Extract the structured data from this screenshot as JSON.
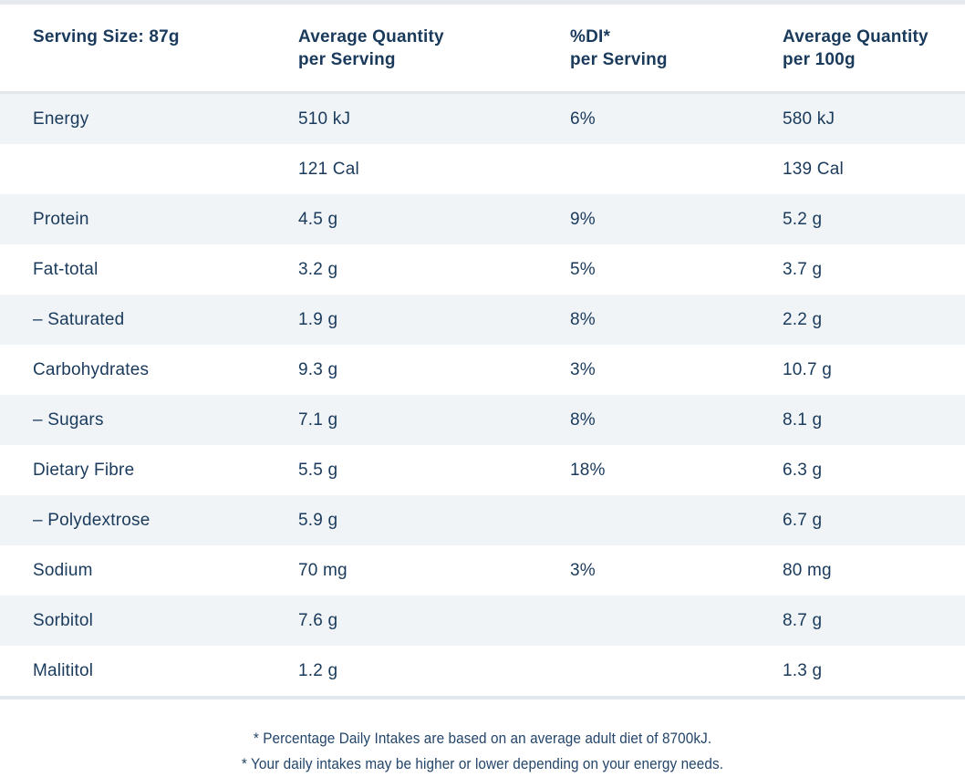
{
  "colors": {
    "text_navy": "#1a3a5c",
    "shaded_row": "#f0f4f7",
    "divider": "#e2e7ec",
    "background": "#ffffff"
  },
  "table": {
    "columns": [
      {
        "line1": "Serving Size: 87g",
        "line2": ""
      },
      {
        "line1": "Average Quantity",
        "line2": "per Serving"
      },
      {
        "line1": "%DI*",
        "line2": "per Serving"
      },
      {
        "line1": "Average Quantity",
        "line2": "per 100g"
      }
    ],
    "rows": [
      {
        "nutrient": "Energy",
        "per_serving": "510 kJ",
        "di_per_serving": "6%",
        "per_100g": "580 kJ"
      },
      {
        "nutrient": "",
        "per_serving": "121 Cal",
        "di_per_serving": "",
        "per_100g": "139 Cal"
      },
      {
        "nutrient": "Protein",
        "per_serving": "4.5 g",
        "di_per_serving": "9%",
        "per_100g": "5.2 g"
      },
      {
        "nutrient": "Fat-total",
        "per_serving": "3.2 g",
        "di_per_serving": "5%",
        "per_100g": "3.7 g"
      },
      {
        "nutrient": "– Saturated",
        "per_serving": "1.9 g",
        "di_per_serving": "8%",
        "per_100g": "2.2 g"
      },
      {
        "nutrient": "Carbohydrates",
        "per_serving": "9.3 g",
        "di_per_serving": "3%",
        "per_100g": "10.7 g"
      },
      {
        "nutrient": "– Sugars",
        "per_serving": "7.1 g",
        "di_per_serving": "8%",
        "per_100g": "8.1 g"
      },
      {
        "nutrient": "Dietary Fibre",
        "per_serving": "5.5 g",
        "di_per_serving": "18%",
        "per_100g": "6.3 g"
      },
      {
        "nutrient": "– Polydextrose",
        "per_serving": "5.9 g",
        "di_per_serving": "",
        "per_100g": "6.7 g"
      },
      {
        "nutrient": "Sodium",
        "per_serving": "70 mg",
        "di_per_serving": "3%",
        "per_100g": "80 mg"
      },
      {
        "nutrient": "Sorbitol",
        "per_serving": "7.6 g",
        "di_per_serving": "",
        "per_100g": "8.7 g"
      },
      {
        "nutrient": "Malititol",
        "per_serving": "1.2 g",
        "di_per_serving": "",
        "per_100g": "1.3 g"
      }
    ]
  },
  "footnotes": [
    "* Percentage Daily Intakes are based on an average adult diet of 8700kJ.",
    "* Your daily intakes may be higher or lower depending on your energy needs."
  ]
}
